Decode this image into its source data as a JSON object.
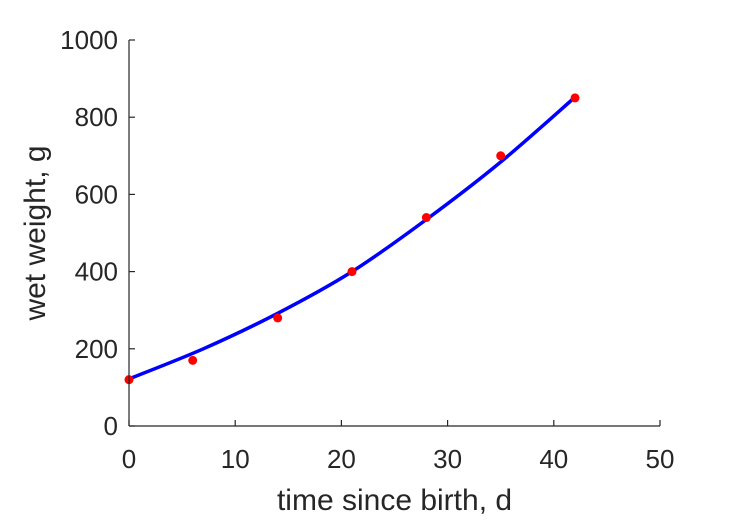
{
  "chart_data": {
    "type": "scatter",
    "xlabel": "time since birth, d",
    "ylabel": "wet weight, g",
    "xlim": [
      0,
      50
    ],
    "ylim": [
      0,
      1000
    ],
    "xticks": [
      "0",
      "10",
      "20",
      "30",
      "40",
      "50"
    ],
    "yticks": [
      "0",
      "200",
      "400",
      "600",
      "800",
      "1000"
    ],
    "grid": false,
    "series": [
      {
        "kind": "points",
        "color": "#ff0000",
        "x": [
          0,
          6,
          14,
          21,
          28,
          35,
          42
        ],
        "y": [
          120,
          170,
          280,
          400,
          540,
          700,
          850
        ]
      },
      {
        "kind": "line",
        "color": "#0000ff",
        "x": [
          0,
          7,
          14,
          21,
          28,
          35,
          42
        ],
        "y": [
          122,
          200,
          292,
          400,
          535,
          684,
          852
        ]
      }
    ]
  }
}
